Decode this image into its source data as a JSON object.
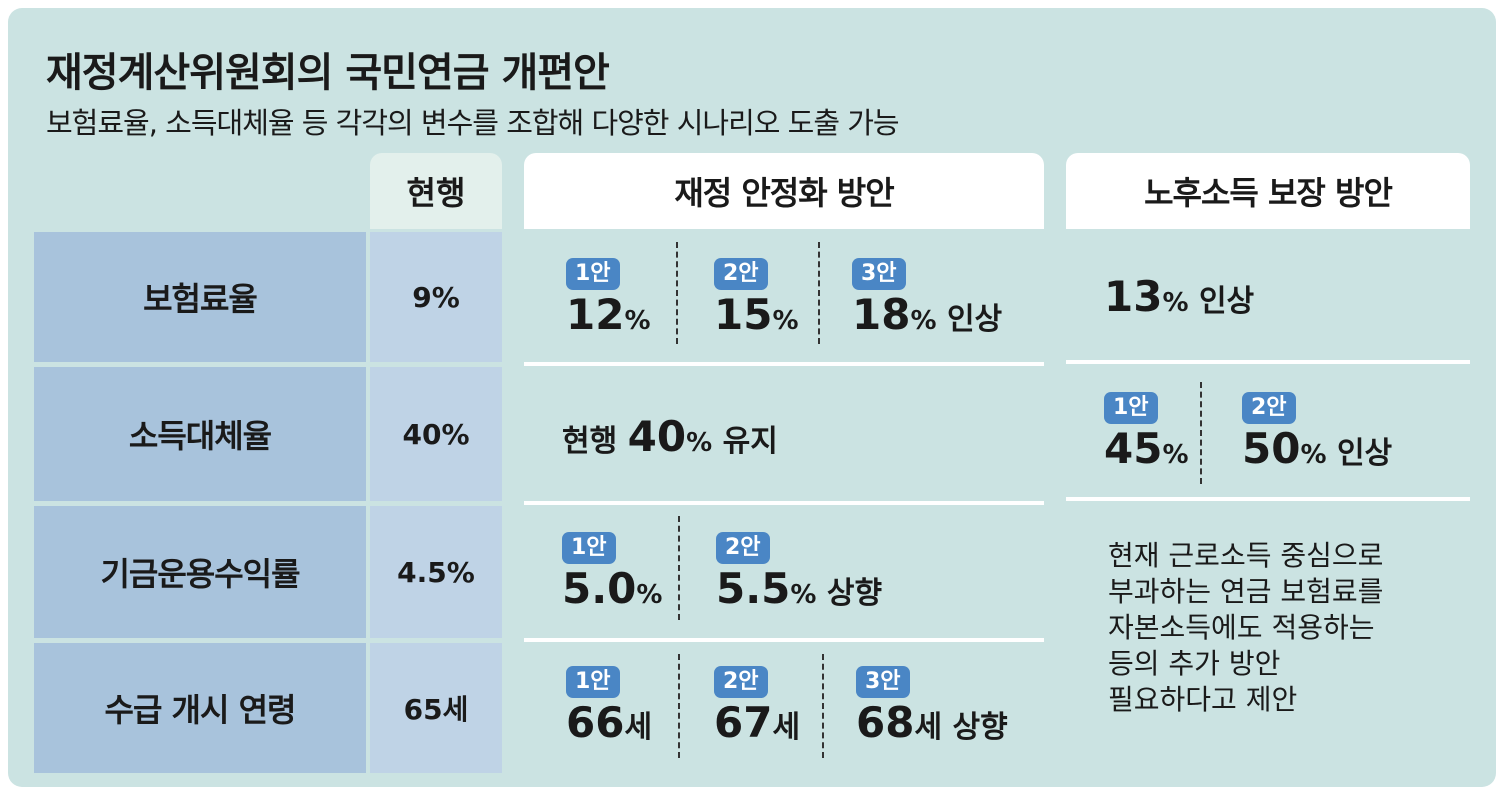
{
  "title": "재정계산위원회의 국민연금 개편안",
  "subtitle": "보험료율, 소득대체율 등 각각의 변수를 조합해 다양한 시나리오 도출 가능",
  "columns": {
    "current": "현행",
    "stability": "재정 안정화 방안",
    "income": "노후소득 보장 방안"
  },
  "rows": [
    {
      "label": "보험료율",
      "current": "9%",
      "stability": [
        {
          "badge": "1안",
          "value": "12",
          "unit": "%",
          "suffix": ""
        },
        {
          "badge": "2안",
          "value": "15",
          "unit": "%",
          "suffix": ""
        },
        {
          "badge": "3안",
          "value": "18",
          "unit": "%",
          "suffix": " 인상"
        }
      ],
      "income": {
        "value": "13",
        "unit": "%",
        "suffix": " 인상"
      }
    },
    {
      "label": "소득대체율",
      "current": "40%",
      "stability": {
        "prefix": "현행 ",
        "value": "40",
        "unit": "%",
        "suffix": " 유지"
      },
      "income": [
        {
          "badge": "1안",
          "value": "45",
          "unit": "%",
          "suffix": ""
        },
        {
          "badge": "2안",
          "value": "50",
          "unit": "%",
          "suffix": " 인상"
        }
      ]
    },
    {
      "label": "기금운용수익률",
      "current": "4.5%",
      "stability": [
        {
          "badge": "1안",
          "value": "5.0",
          "unit": "%",
          "suffix": ""
        },
        {
          "badge": "2안",
          "value": "5.5",
          "unit": "%",
          "suffix": " 상향"
        }
      ]
    },
    {
      "label": "수급 개시 연령",
      "current": "65세",
      "stability": [
        {
          "badge": "1안",
          "value": "66",
          "unit": "세",
          "suffix": ""
        },
        {
          "badge": "2안",
          "value": "67",
          "unit": "세",
          "suffix": ""
        },
        {
          "badge": "3안",
          "value": "68",
          "unit": "세",
          "suffix": " 상향"
        }
      ]
    }
  ],
  "income_note": "현재 근로소득 중심으로\n부과하는 연금 보험료를\n자본소득에도 적용하는\n등의 추가 방안\n필요하다고 제안",
  "colors": {
    "background": "#cbe3e2",
    "row_header": "#a8c3dc",
    "badge": "#4a86c5"
  }
}
